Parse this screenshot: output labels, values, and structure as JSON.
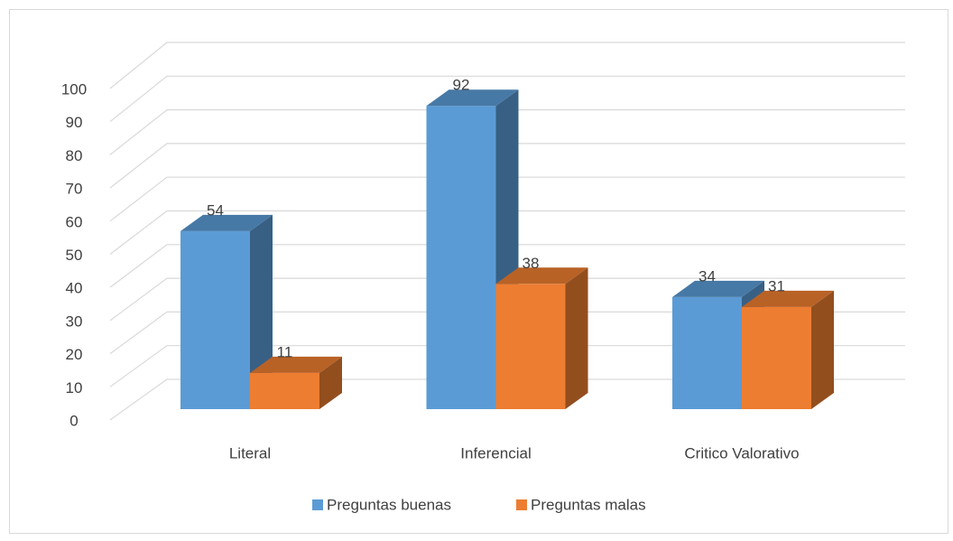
{
  "chart_data": {
    "type": "bar3d",
    "categories": [
      "Literal",
      "Inferencial",
      "Critico Valorativo"
    ],
    "series": [
      {
        "name": "Preguntas buenas",
        "color": "#5b9bd5",
        "values": [
          54,
          92,
          34
        ]
      },
      {
        "name": "Preguntas malas",
        "color": "#ed7d31",
        "values": [
          11,
          38,
          31
        ]
      }
    ],
    "ylim": [
      0,
      100
    ],
    "yticks": [
      0,
      10,
      20,
      30,
      40,
      50,
      60,
      70,
      80,
      90,
      100
    ],
    "grid": true,
    "legend": "bottom",
    "data_labels": true
  }
}
